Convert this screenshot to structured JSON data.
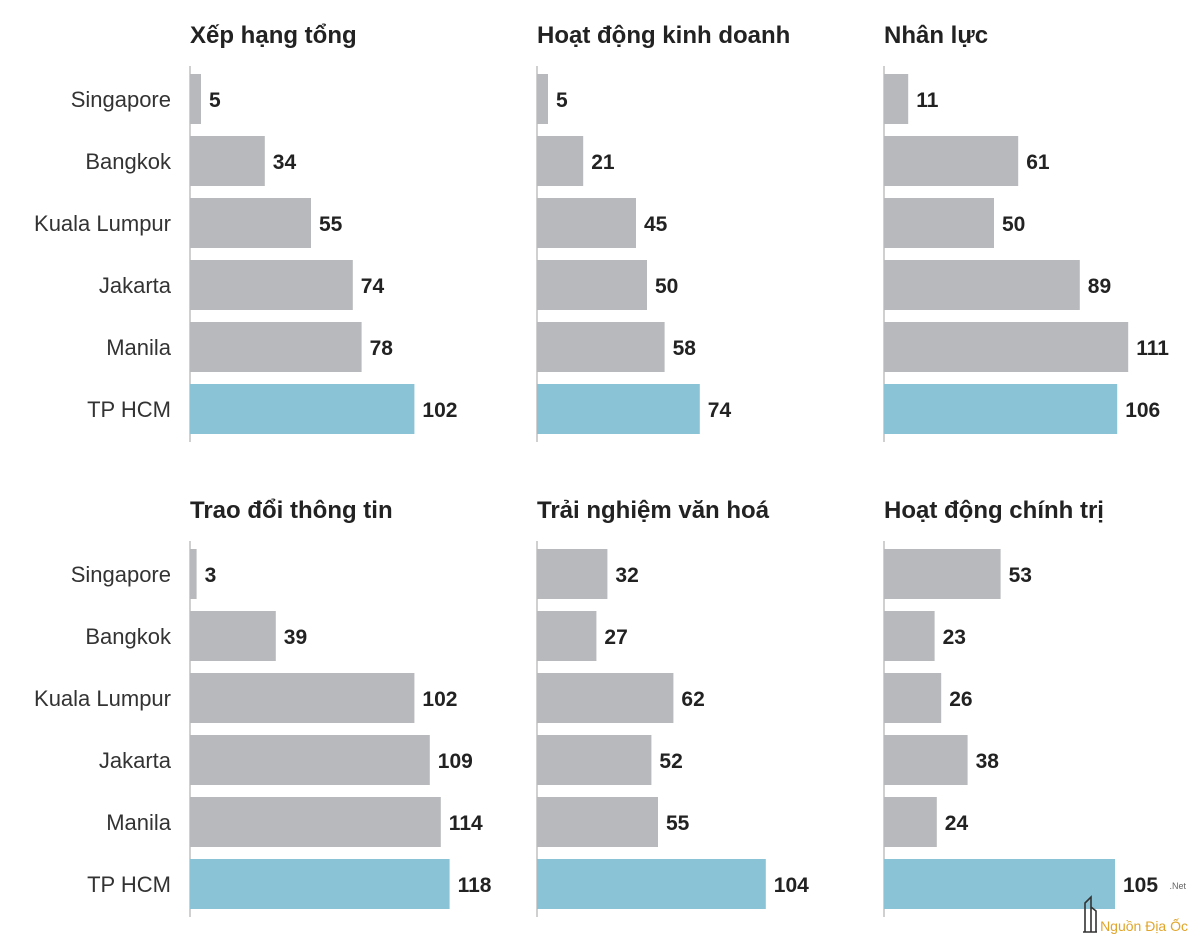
{
  "colors": {
    "default_bar": "#b8b9bc",
    "highlight_bar": "#8ac3d6",
    "axis": "#d0d0d0"
  },
  "chart_data": [
    {
      "type": "bar",
      "orientation": "horizontal",
      "title": "Xếp hạng tổng",
      "categories": [
        "Singapore",
        "Bangkok",
        "Kuala Lumpur",
        "Jakarta",
        "Manila",
        "TP HCM"
      ],
      "values": [
        5,
        34,
        55,
        74,
        78,
        102
      ],
      "highlight": "TP HCM",
      "xlim": [
        0,
        120
      ]
    },
    {
      "type": "bar",
      "orientation": "horizontal",
      "title": "Hoạt động kinh doanh",
      "categories": [
        "Singapore",
        "Bangkok",
        "Kuala Lumpur",
        "Jakarta",
        "Manila",
        "TP HCM"
      ],
      "values": [
        5,
        21,
        45,
        50,
        58,
        74
      ],
      "highlight": "TP HCM",
      "xlim": [
        0,
        120
      ]
    },
    {
      "type": "bar",
      "orientation": "horizontal",
      "title": "Nhân lực",
      "categories": [
        "Singapore",
        "Bangkok",
        "Kuala Lumpur",
        "Jakarta",
        "Manila",
        "TP HCM"
      ],
      "values": [
        11,
        61,
        50,
        89,
        111,
        106
      ],
      "highlight": "TP HCM",
      "xlim": [
        0,
        120
      ]
    },
    {
      "type": "bar",
      "orientation": "horizontal",
      "title": "Trao đổi thông tin",
      "categories": [
        "Singapore",
        "Bangkok",
        "Kuala Lumpur",
        "Jakarta",
        "Manila",
        "TP HCM"
      ],
      "values": [
        3,
        39,
        102,
        109,
        114,
        118
      ],
      "highlight": "TP HCM",
      "xlim": [
        0,
        120
      ]
    },
    {
      "type": "bar",
      "orientation": "horizontal",
      "title": "Trải nghiệm văn hoá",
      "categories": [
        "Singapore",
        "Bangkok",
        "Kuala Lumpur",
        "Jakarta",
        "Manila",
        "TP HCM"
      ],
      "values": [
        32,
        27,
        62,
        52,
        55,
        104
      ],
      "highlight": "TP HCM",
      "xlim": [
        0,
        120
      ]
    },
    {
      "type": "bar",
      "orientation": "horizontal",
      "title": "Hoạt động chính trị",
      "categories": [
        "Singapore",
        "Bangkok",
        "Kuala Lumpur",
        "Jakarta",
        "Manila",
        "TP HCM"
      ],
      "values": [
        53,
        23,
        26,
        38,
        24,
        105
      ],
      "highlight": "TP HCM",
      "xlim": [
        0,
        120
      ]
    }
  ],
  "watermark": {
    "text": "Nguồn Địa Ốc",
    "suffix": ".Net",
    "icon": "building-icon"
  }
}
